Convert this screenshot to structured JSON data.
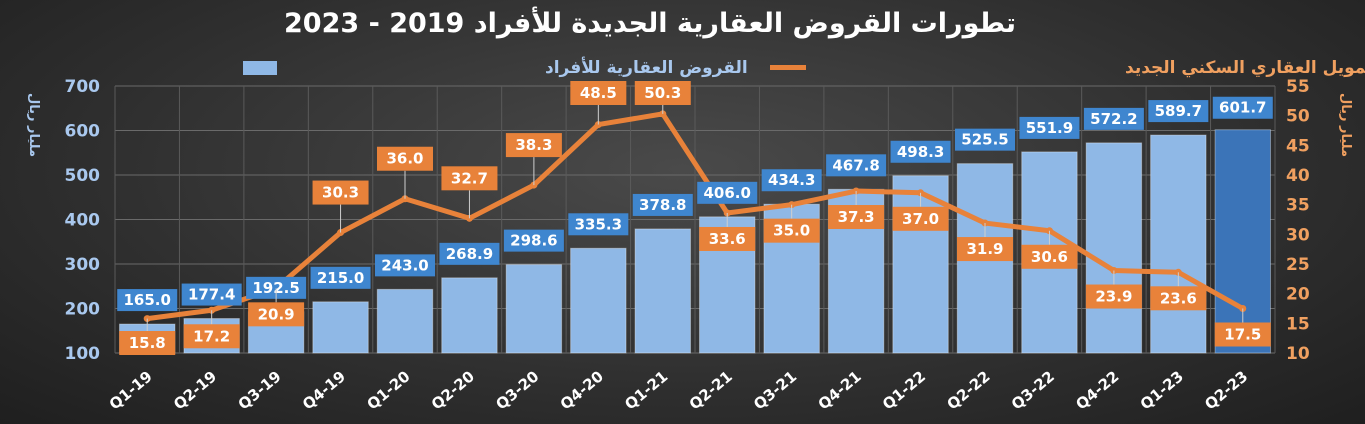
{
  "chart_data": {
    "type": "bar",
    "title": "تطورات القروض العقارية الجديدة للأفراد 2019 - 2023",
    "categories": [
      "Q1-19",
      "Q2-19",
      "Q3-19",
      "Q4-19",
      "Q1-20",
      "Q2-20",
      "Q3-20",
      "Q4-20",
      "Q1-21",
      "Q2-21",
      "Q3-21",
      "Q4-21",
      "Q1-22",
      "Q2-22",
      "Q3-22",
      "Q4-22",
      "Q1-23",
      "Q2-23"
    ],
    "series": [
      {
        "name": "القروض العقارية للأفراد",
        "type": "bar",
        "axis": "left",
        "color": "#8fb8e6",
        "highlight_last_color": "#3b74b8",
        "values": [
          165.0,
          177.4,
          192.5,
          215.0,
          243.0,
          268.9,
          298.6,
          335.3,
          378.8,
          406.0,
          434.3,
          467.8,
          498.3,
          525.5,
          551.9,
          572.2,
          589.7,
          601.7
        ]
      },
      {
        "name": "التمويل العقاري السكني الجديد",
        "type": "line",
        "axis": "right",
        "color": "#e8823a",
        "values": [
          15.8,
          17.2,
          20.9,
          30.3,
          36.0,
          32.7,
          38.3,
          48.5,
          50.3,
          33.6,
          35.0,
          37.3,
          37.0,
          31.9,
          30.6,
          23.9,
          23.6,
          17.5
        ]
      }
    ],
    "y_left": {
      "label": "مليار ريال",
      "ylim": [
        100,
        700
      ],
      "ticks": [
        100,
        200,
        300,
        400,
        500,
        600,
        700
      ],
      "color": "#a9c8ee"
    },
    "y_right": {
      "label": "مليار ريال",
      "ylim": [
        10,
        55
      ],
      "ticks": [
        10,
        15,
        20,
        25,
        30,
        35,
        40,
        45,
        50,
        55
      ],
      "color": "#f0a060"
    },
    "grid": true,
    "legend_position": "top"
  }
}
